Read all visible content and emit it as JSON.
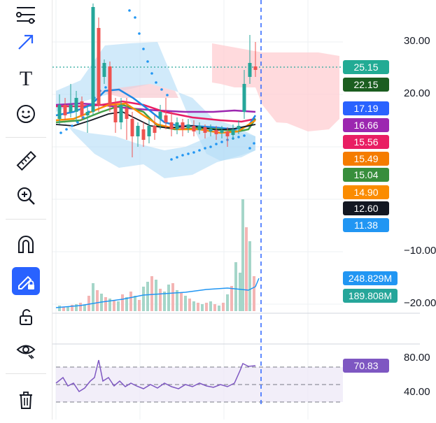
{
  "toolbar": {
    "tools": [
      {
        "name": "trend-line-tool",
        "icon": "trend-lines-icon"
      },
      {
        "name": "arrow-tool",
        "icon": "arrow-icon"
      },
      {
        "name": "text-tool",
        "icon": "text-icon"
      },
      {
        "name": "emoji-tool",
        "icon": "smiley-icon"
      },
      {
        "name": "ruler-tool",
        "icon": "ruler-icon"
      },
      {
        "name": "zoom-tool",
        "icon": "zoom-in-icon"
      },
      {
        "name": "magnet-tool",
        "icon": "magnet-icon"
      },
      {
        "name": "lock-drawings-tool",
        "icon": "pencil-lock-icon",
        "active": true
      },
      {
        "name": "lock-all-tool",
        "icon": "unlock-icon"
      },
      {
        "name": "hide-drawings-tool",
        "icon": "eye-icon"
      },
      {
        "name": "delete-tool",
        "icon": "trash-icon"
      }
    ],
    "text_glyph": "T",
    "accent": "#2962ff"
  },
  "price_axis": {
    "ticks": [
      {
        "label": "30.00",
        "value": 30
      },
      {
        "label": "20.00",
        "value": 20
      },
      {
        "label": "−10.00",
        "value": -10
      },
      {
        "label": "−20.00",
        "value": -20
      }
    ],
    "rsi_ticks": [
      {
        "label": "80.00",
        "value": 80
      },
      {
        "label": "40.00",
        "value": 40
      }
    ]
  },
  "price_tags": [
    {
      "label": "25.15",
      "color": "#22ab94"
    },
    {
      "label": "22.15",
      "color": "#1b5e20"
    },
    {
      "label": "17.19",
      "color": "#2962ff"
    },
    {
      "label": "16.66",
      "color": "#9c27b0"
    },
    {
      "label": "15.56",
      "color": "#e91e63"
    },
    {
      "label": "15.49",
      "color": "#f57c00"
    },
    {
      "label": "15.04",
      "color": "#388e3c"
    },
    {
      "label": "14.90",
      "color": "#fb8c00"
    },
    {
      "label": "12.60",
      "color": "#131722"
    },
    {
      "label": "11.38",
      "color": "#2196f3"
    }
  ],
  "volume_tags": [
    {
      "label": "248.829M",
      "color": "#2196f3"
    },
    {
      "label": "189.808M",
      "color": "#26a69a"
    }
  ],
  "rsi_tag": {
    "label": "70.83",
    "color": "#7e57c2"
  },
  "rsi_value": 70.83,
  "colors": {
    "up": "#26a69a",
    "down": "#ef5350",
    "cloud_bull": "#b3dcf6",
    "cloud_bear": "#ffcdd2",
    "rsi": "#7e57c2",
    "crosshair": "#2962ff"
  }
}
